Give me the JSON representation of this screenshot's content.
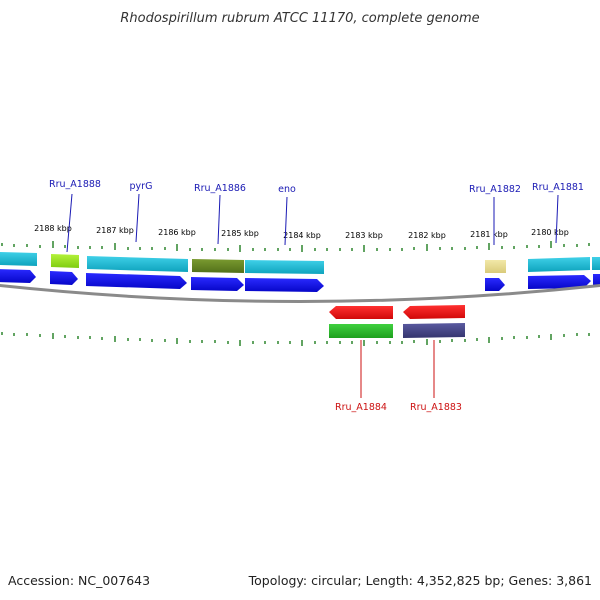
{
  "title": "Rhodospirillum rubrum ATCC 11170, complete genome",
  "footer": {
    "accession": "Accession: NC_007643",
    "summary": "Topology: circular; Length: 4,352,825 bp; Genes: 3,861"
  },
  "colors": {
    "forward_label": "#1a1ab4",
    "reverse_label": "#cc1111",
    "tick": "#1e7d1e",
    "backbone": "#8a8a8a",
    "cds_forward": "#1010e0",
    "cds_reverse": "#ee1111"
  },
  "scale": {
    "ticks": [
      "2188 kbp",
      "2187 kbp",
      "2186 kbp",
      "2185 kbp",
      "2184 kbp",
      "2183 kbp",
      "2182 kbp",
      "2181 kbp",
      "2180 kbp"
    ]
  },
  "genes_forward": [
    {
      "name": "Rru_A1888"
    },
    {
      "name": "pyrG"
    },
    {
      "name": "Rru_A1886"
    },
    {
      "name": "eno"
    },
    {
      "name": "Rru_A1882"
    },
    {
      "name": "Rru_A1881"
    }
  ],
  "genes_reverse": [
    {
      "name": "Rru_A1884"
    },
    {
      "name": "Rru_A1883"
    }
  ]
}
